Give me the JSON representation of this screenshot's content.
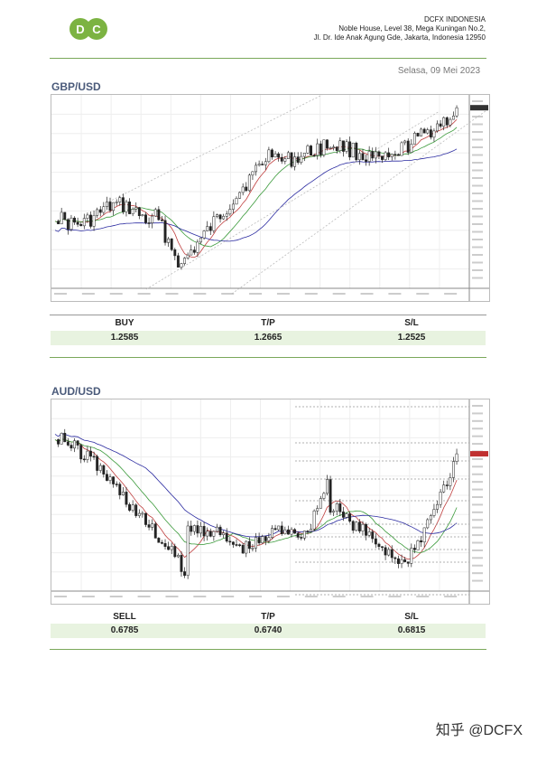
{
  "header": {
    "logo_text": "DC",
    "company_name": "DCFX INDONESIA",
    "address_line1": "Noble House, Level 38, Mega Kuningan No.2,",
    "address_line2": "Jl. Dr. Ide Anak Agung Gde, Jakarta, Indonesia 12950"
  },
  "date": "Selasa, 09 Mei 2023",
  "colors": {
    "accent_green": "#7aa85a",
    "row_bg": "#e8f3e0",
    "pair_title": "#4a5a7a"
  },
  "signals": [
    {
      "pair": "GBP/USD",
      "labels": [
        "BUY",
        "T/P",
        "S/L"
      ],
      "values": [
        "1.2585",
        "1.2665",
        "1.2525"
      ]
    },
    {
      "pair": "AUD/USD",
      "labels": [
        "SELL",
        "T/P",
        "S/L"
      ],
      "values": [
        "0.6785",
        "0.6740",
        "0.6815"
      ]
    }
  ],
  "watermark": "知乎 @DCFX"
}
